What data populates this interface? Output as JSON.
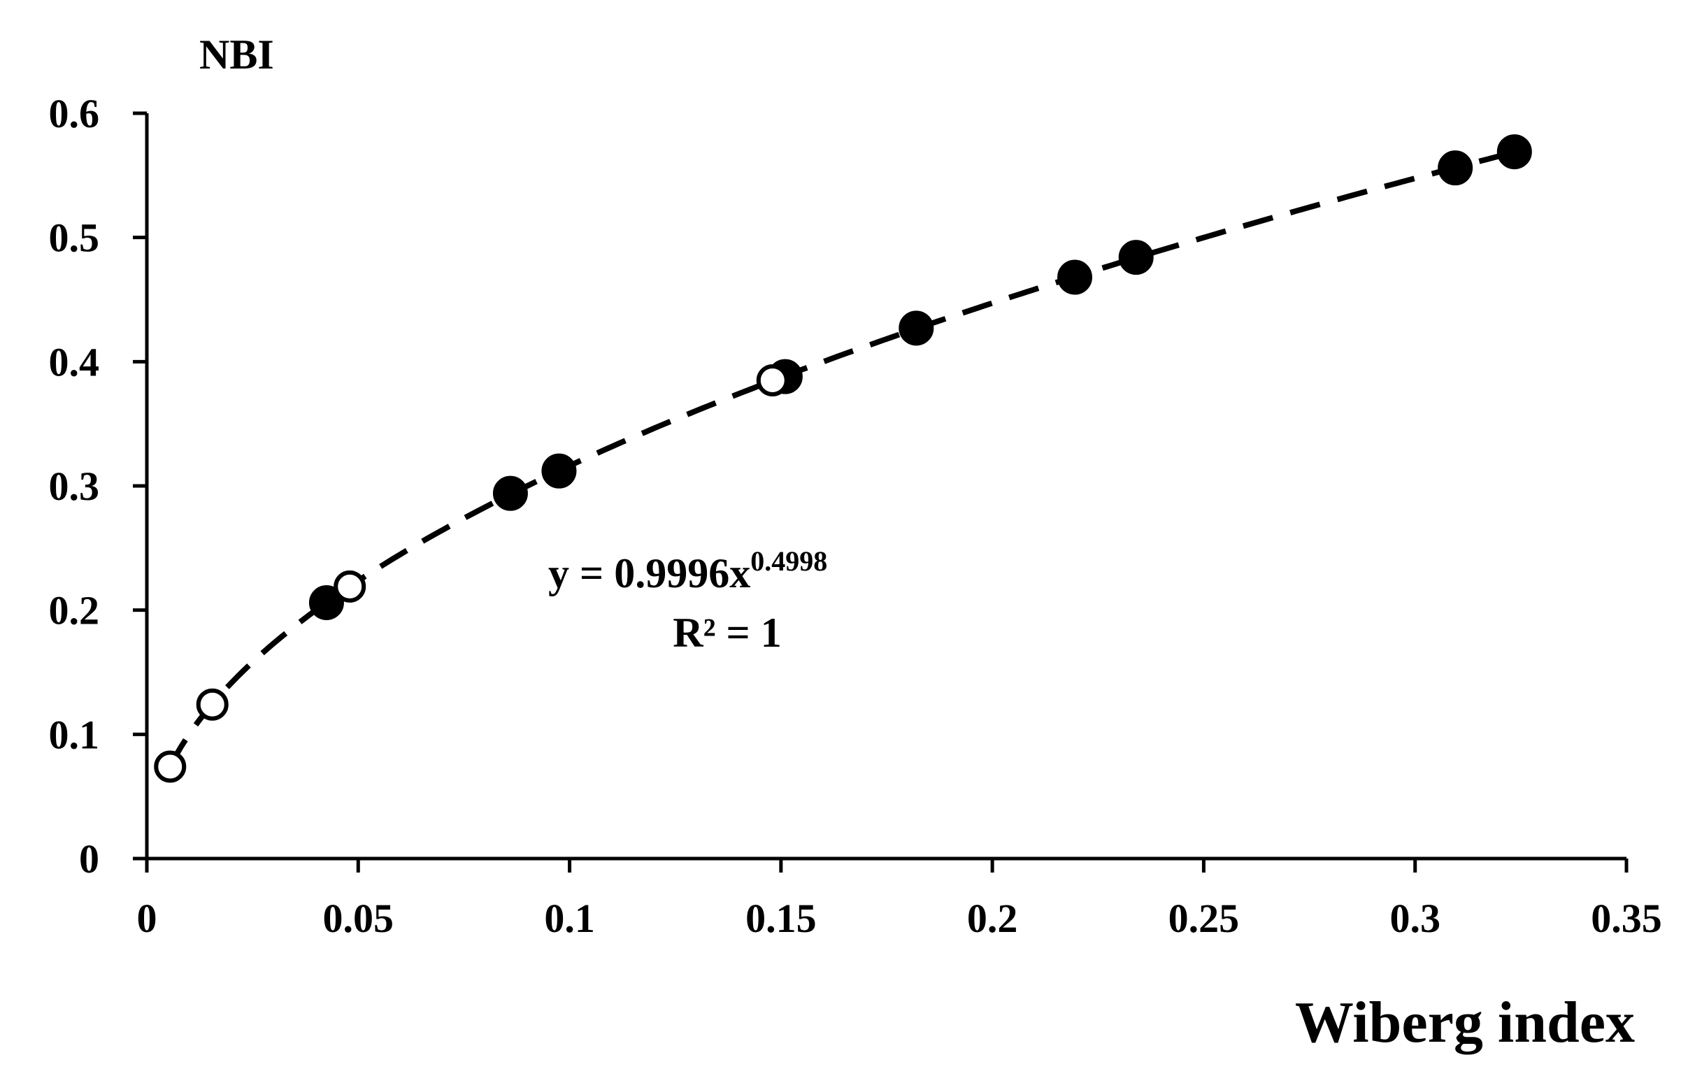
{
  "chart_data": {
    "type": "scatter",
    "xlabel": "Wiberg index",
    "ylabel": "NBI",
    "xlim": [
      0,
      0.35
    ],
    "ylim": [
      0,
      0.6
    ],
    "x_ticks": [
      "0",
      "0.05",
      "0.1",
      "0.15",
      "0.2",
      "0.25",
      "0.3",
      "0.35"
    ],
    "y_ticks": [
      "0",
      "0.1",
      "0.2",
      "0.3",
      "0.4",
      "0.5",
      "0.6"
    ],
    "grid": false,
    "legend": "none",
    "series": [
      {
        "marker": "filled-circle",
        "color": "#000000",
        "points": [
          {
            "x": 0.0425,
            "y": 0.206
          },
          {
            "x": 0.086,
            "y": 0.294
          },
          {
            "x": 0.0975,
            "y": 0.312
          },
          {
            "x": 0.151,
            "y": 0.388
          },
          {
            "x": 0.182,
            "y": 0.427
          },
          {
            "x": 0.2195,
            "y": 0.468
          },
          {
            "x": 0.234,
            "y": 0.484
          },
          {
            "x": 0.3095,
            "y": 0.556
          },
          {
            "x": 0.3235,
            "y": 0.569
          }
        ]
      },
      {
        "marker": "open-circle",
        "color": "#000000",
        "points": [
          {
            "x": 0.0055,
            "y": 0.074
          },
          {
            "x": 0.0155,
            "y": 0.124
          },
          {
            "x": 0.048,
            "y": 0.219
          },
          {
            "x": 0.148,
            "y": 0.385
          }
        ]
      }
    ],
    "trendline": {
      "type": "power",
      "coefficient": 0.9996,
      "exponent": 0.4998,
      "x_range": [
        0.0055,
        0.3235
      ],
      "style": "dashed",
      "color": "#000000"
    },
    "annotations": {
      "equation_main": "y = 0.9996x",
      "equation_exponent": "0.4998",
      "r_squared": "R² = 1"
    }
  }
}
